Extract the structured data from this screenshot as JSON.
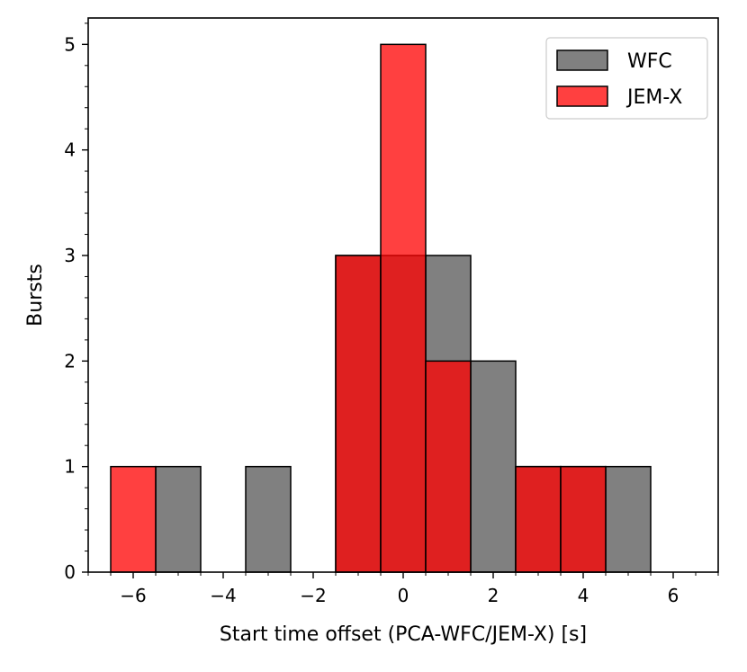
{
  "chart_data": {
    "type": "bar",
    "title": "",
    "xlabel": "Start time offset (PCA-WFC/JEM-X) [s]",
    "ylabel": "Bursts",
    "xlim": [
      -7,
      7
    ],
    "ylim": [
      0,
      5.25
    ],
    "bin_width": 1,
    "x_major_ticks": [
      -6,
      -4,
      -2,
      0,
      2,
      4,
      6
    ],
    "x_tick_labels": [
      "−6",
      "−4",
      "−2",
      "0",
      "2",
      "4",
      "6"
    ],
    "y_major_ticks": [
      0,
      1,
      2,
      3,
      4,
      5
    ],
    "y_tick_labels": [
      "0",
      "1",
      "2",
      "3",
      "4",
      "5"
    ],
    "legend_position": "top-right",
    "series": [
      {
        "name": "WFC",
        "color": "#808080",
        "opacity": 1,
        "bin_centers": [
          -5,
          -3,
          -1,
          0,
          1,
          2,
          3,
          4,
          5
        ],
        "values": [
          1,
          1,
          3,
          3,
          3,
          2,
          1,
          1,
          1
        ]
      },
      {
        "name": "JEM-X",
        "color": "#ff0000",
        "opacity": 0.75,
        "bin_centers": [
          -6,
          -1,
          0,
          1,
          3,
          4
        ],
        "values": [
          1,
          3,
          5,
          2,
          1,
          1
        ]
      }
    ]
  }
}
